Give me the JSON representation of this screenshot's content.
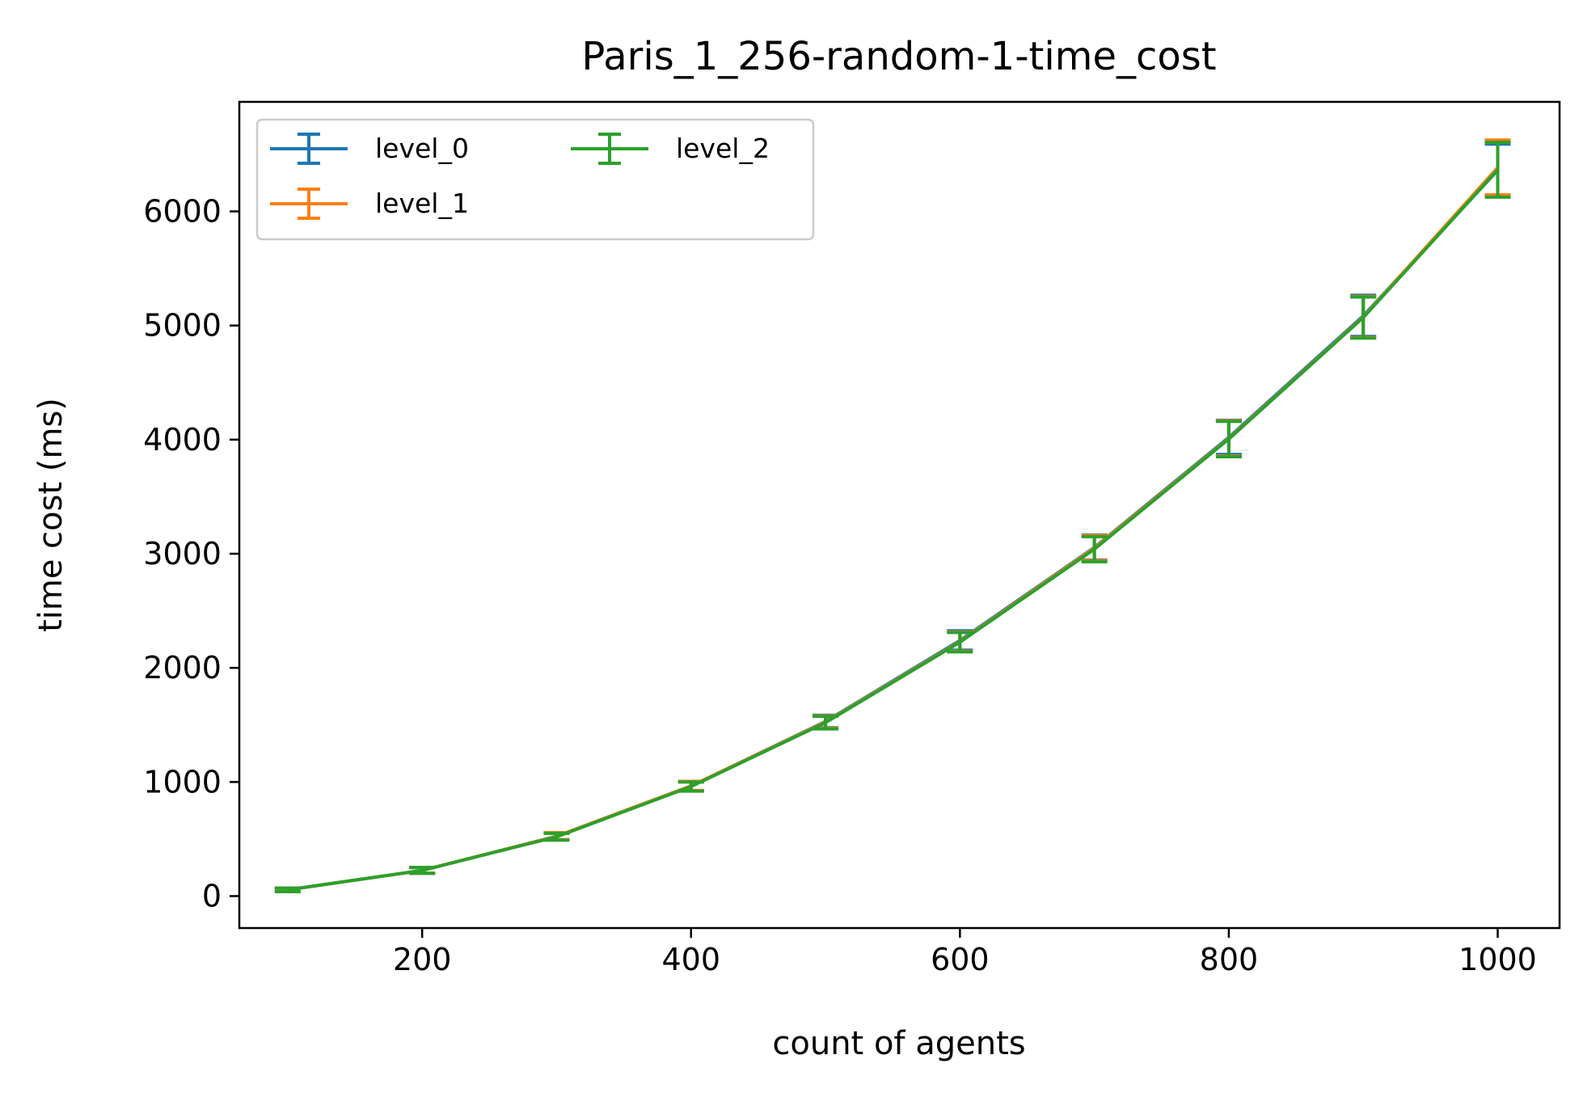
{
  "chart_data": {
    "type": "line",
    "title": "Paris_1_256-random-1-time_cost",
    "xlabel": "count of agents",
    "ylabel": "time cost (ms)",
    "xlim": [
      64,
      1046
    ],
    "ylim": [
      -280,
      6960
    ],
    "xticks": [
      200,
      400,
      600,
      800,
      1000
    ],
    "yticks": [
      0,
      1000,
      2000,
      3000,
      4000,
      5000,
      6000
    ],
    "grid": false,
    "legend_position": "top-left",
    "x": [
      100,
      200,
      300,
      400,
      500,
      600,
      700,
      800,
      900,
      1000
    ],
    "series": [
      {
        "name": "level_0",
        "color": "#1f77b4",
        "values": [
          55,
          225,
          525,
          965,
          1530,
          2240,
          3055,
          4020,
          5085,
          6360
        ],
        "errors": [
          15,
          25,
          30,
          40,
          55,
          85,
          110,
          150,
          180,
          230
        ]
      },
      {
        "name": "level_1",
        "color": "#ff7f0e",
        "values": [
          55,
          225,
          525,
          965,
          1525,
          2230,
          3050,
          4010,
          5075,
          6385
        ],
        "errors": [
          15,
          25,
          30,
          40,
          55,
          85,
          110,
          155,
          180,
          240
        ]
      },
      {
        "name": "level_2",
        "color": "#2ca02c",
        "values": [
          55,
          225,
          520,
          960,
          1520,
          2225,
          3040,
          4005,
          5070,
          6365
        ],
        "errors": [
          15,
          25,
          30,
          40,
          55,
          85,
          110,
          155,
          180,
          240
        ]
      }
    ]
  }
}
